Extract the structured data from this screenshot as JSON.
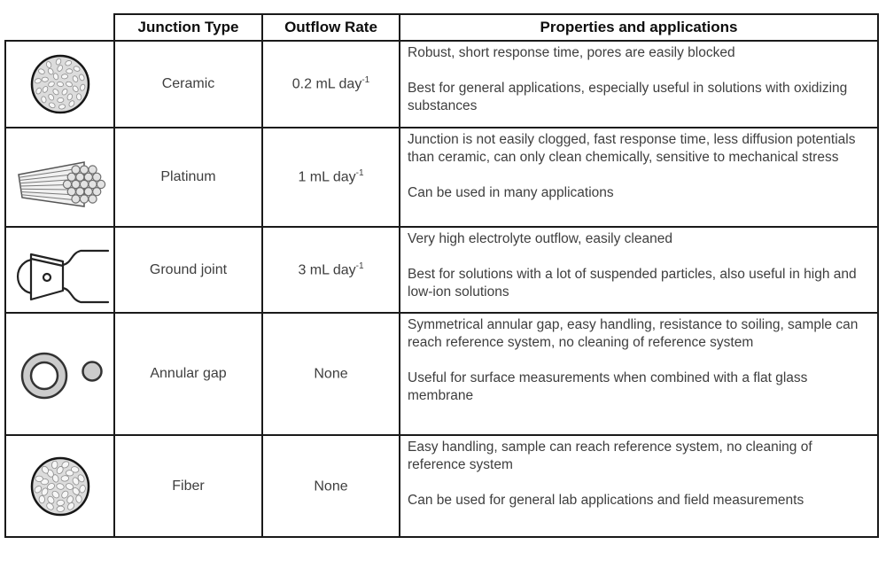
{
  "table": {
    "headers": {
      "junction_type": "Junction Type",
      "outflow_rate": "Outflow Rate",
      "properties": "Properties and applications"
    },
    "rows": [
      {
        "icon": "ceramic-cross-section-icon",
        "type": "Ceramic",
        "outflow": {
          "text": "0.2 mL day",
          "sup": "-1"
        },
        "properties": "Robust, short response time, pores are easily blocked",
        "applications": "Best for general applications, especially useful in solutions with oxidizing substances"
      },
      {
        "icon": "platinum-wire-bundle-icon",
        "type": "Platinum",
        "outflow": {
          "text": "1 mL day",
          "sup": "-1"
        },
        "properties": "Junction is not easily clogged, fast response time, less diffusion potentials than ceramic, can only clean chemically, sensitive to mechanical stress",
        "applications": "Can be used in many applications"
      },
      {
        "icon": "ground-joint-icon",
        "type": "Ground joint",
        "outflow": {
          "text": "3 mL day",
          "sup": "-1"
        },
        "properties": "Very high electrolyte outflow, easily cleaned",
        "applications": "Best for solutions with a lot of suspended particles, also useful in high and low-ion solutions"
      },
      {
        "icon": "annular-gap-icon",
        "type": "Annular gap",
        "outflow": {
          "text": "None",
          "sup": ""
        },
        "properties": "Symmetrical annular gap, easy handling, resistance to soiling, sample can reach reference system, no cleaning of reference system",
        "applications": "Useful for surface measurements when combined with a flat glass membrane"
      },
      {
        "icon": "fiber-cross-section-icon",
        "type": "Fiber",
        "outflow": {
          "text": "None",
          "sup": ""
        },
        "properties": "Easy handling, sample can reach reference system, no cleaning of reference system",
        "applications": "Can be used for general lab applications and field measurements"
      }
    ],
    "colors": {
      "border": "#1a1a1a",
      "body_text": "#3e3e3e",
      "header_text": "#0d0d0d",
      "icon_fill": "#dcdcdc"
    }
  }
}
